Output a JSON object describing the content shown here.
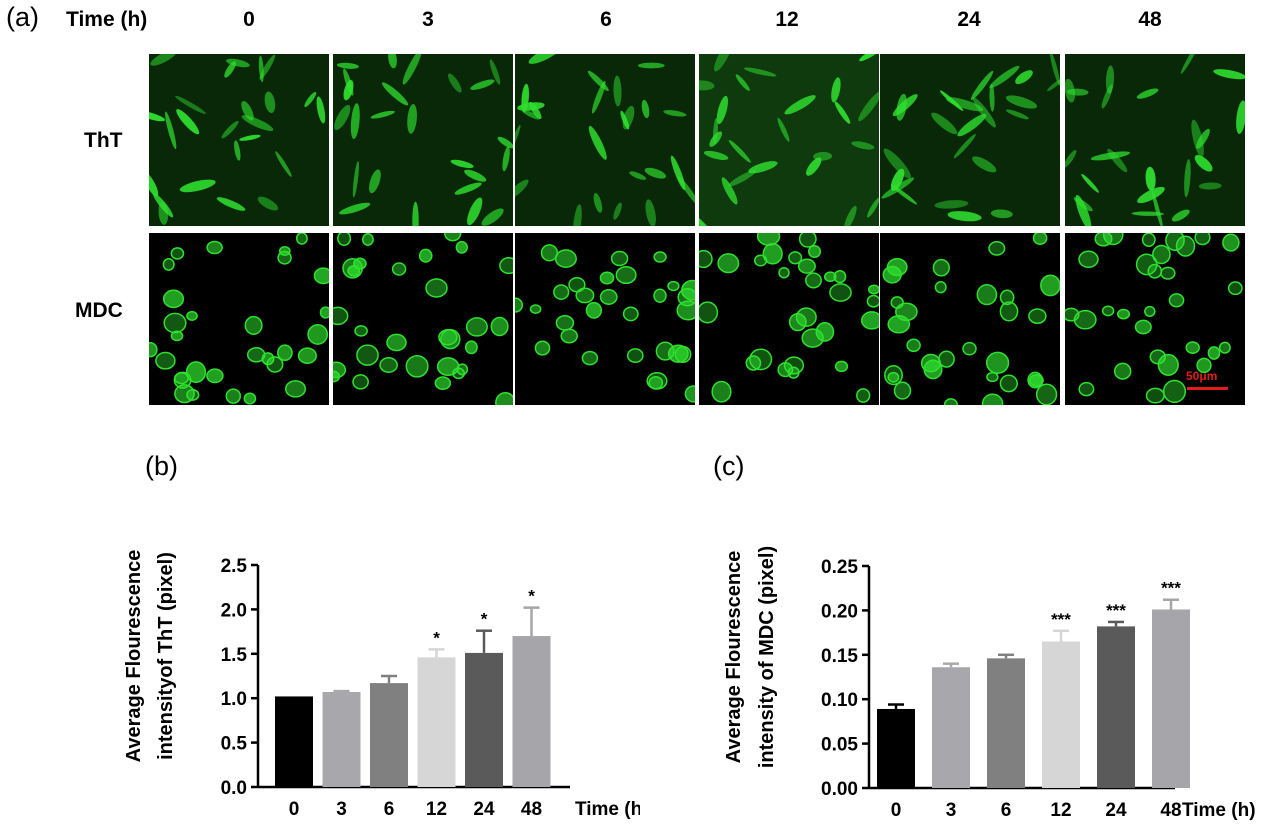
{
  "figure_a": {
    "panel_label": "(a)",
    "time_header": "Time (h)",
    "timepoints": [
      "0",
      "3",
      "6",
      "12",
      "24",
      "48"
    ],
    "rows": [
      "ThT",
      "MDC"
    ],
    "scale_bar": "50μm",
    "fluorescence_color": "#2fe02f",
    "scale_bar_color": "#e21b1b"
  },
  "chart_data": [
    {
      "panel_label": "(b)",
      "type": "bar",
      "categories": [
        "0",
        "3",
        "6",
        "12",
        "24",
        "48"
      ],
      "values": [
        1.02,
        1.07,
        1.17,
        1.46,
        1.51,
        1.7
      ],
      "errors": [
        0.0,
        0.01,
        0.08,
        0.09,
        0.25,
        0.32
      ],
      "significance": [
        "",
        "",
        "",
        "*",
        "*",
        "*"
      ],
      "bar_colors": [
        "#000000",
        "#a8a8ac",
        "#808080",
        "#d6d6d6",
        "#5a5a5a",
        "#a5a5aa"
      ],
      "ylabel_line1": "Average Flourescence",
      "ylabel_line2": "intensityof ThT (pixel)",
      "xlabel": "Time (h)",
      "ylim": [
        0,
        2.5
      ],
      "yticks": [
        "0.0",
        "0.5",
        "1.0",
        "1.5",
        "2.0",
        "2.5"
      ]
    },
    {
      "panel_label": "(c)",
      "type": "bar",
      "categories": [
        "0",
        "3",
        "6",
        "12",
        "24",
        "48"
      ],
      "values": [
        0.089,
        0.136,
        0.146,
        0.165,
        0.182,
        0.201
      ],
      "errors": [
        0.005,
        0.004,
        0.004,
        0.012,
        0.005,
        0.011
      ],
      "significance": [
        "",
        "",
        "",
        "***",
        "***",
        "***"
      ],
      "bar_colors": [
        "#000000",
        "#a8a8ac",
        "#808080",
        "#d6d6d6",
        "#5a5a5a",
        "#a5a5aa"
      ],
      "ylabel_line1": "Average Flourescence",
      "ylabel_line2": "intensity of MDC (pixel)",
      "xlabel": "Time (h)",
      "ylim": [
        0,
        0.25
      ],
      "yticks": [
        "0.00",
        "0.05",
        "0.10",
        "0.15",
        "0.20",
        "0.25"
      ]
    }
  ]
}
